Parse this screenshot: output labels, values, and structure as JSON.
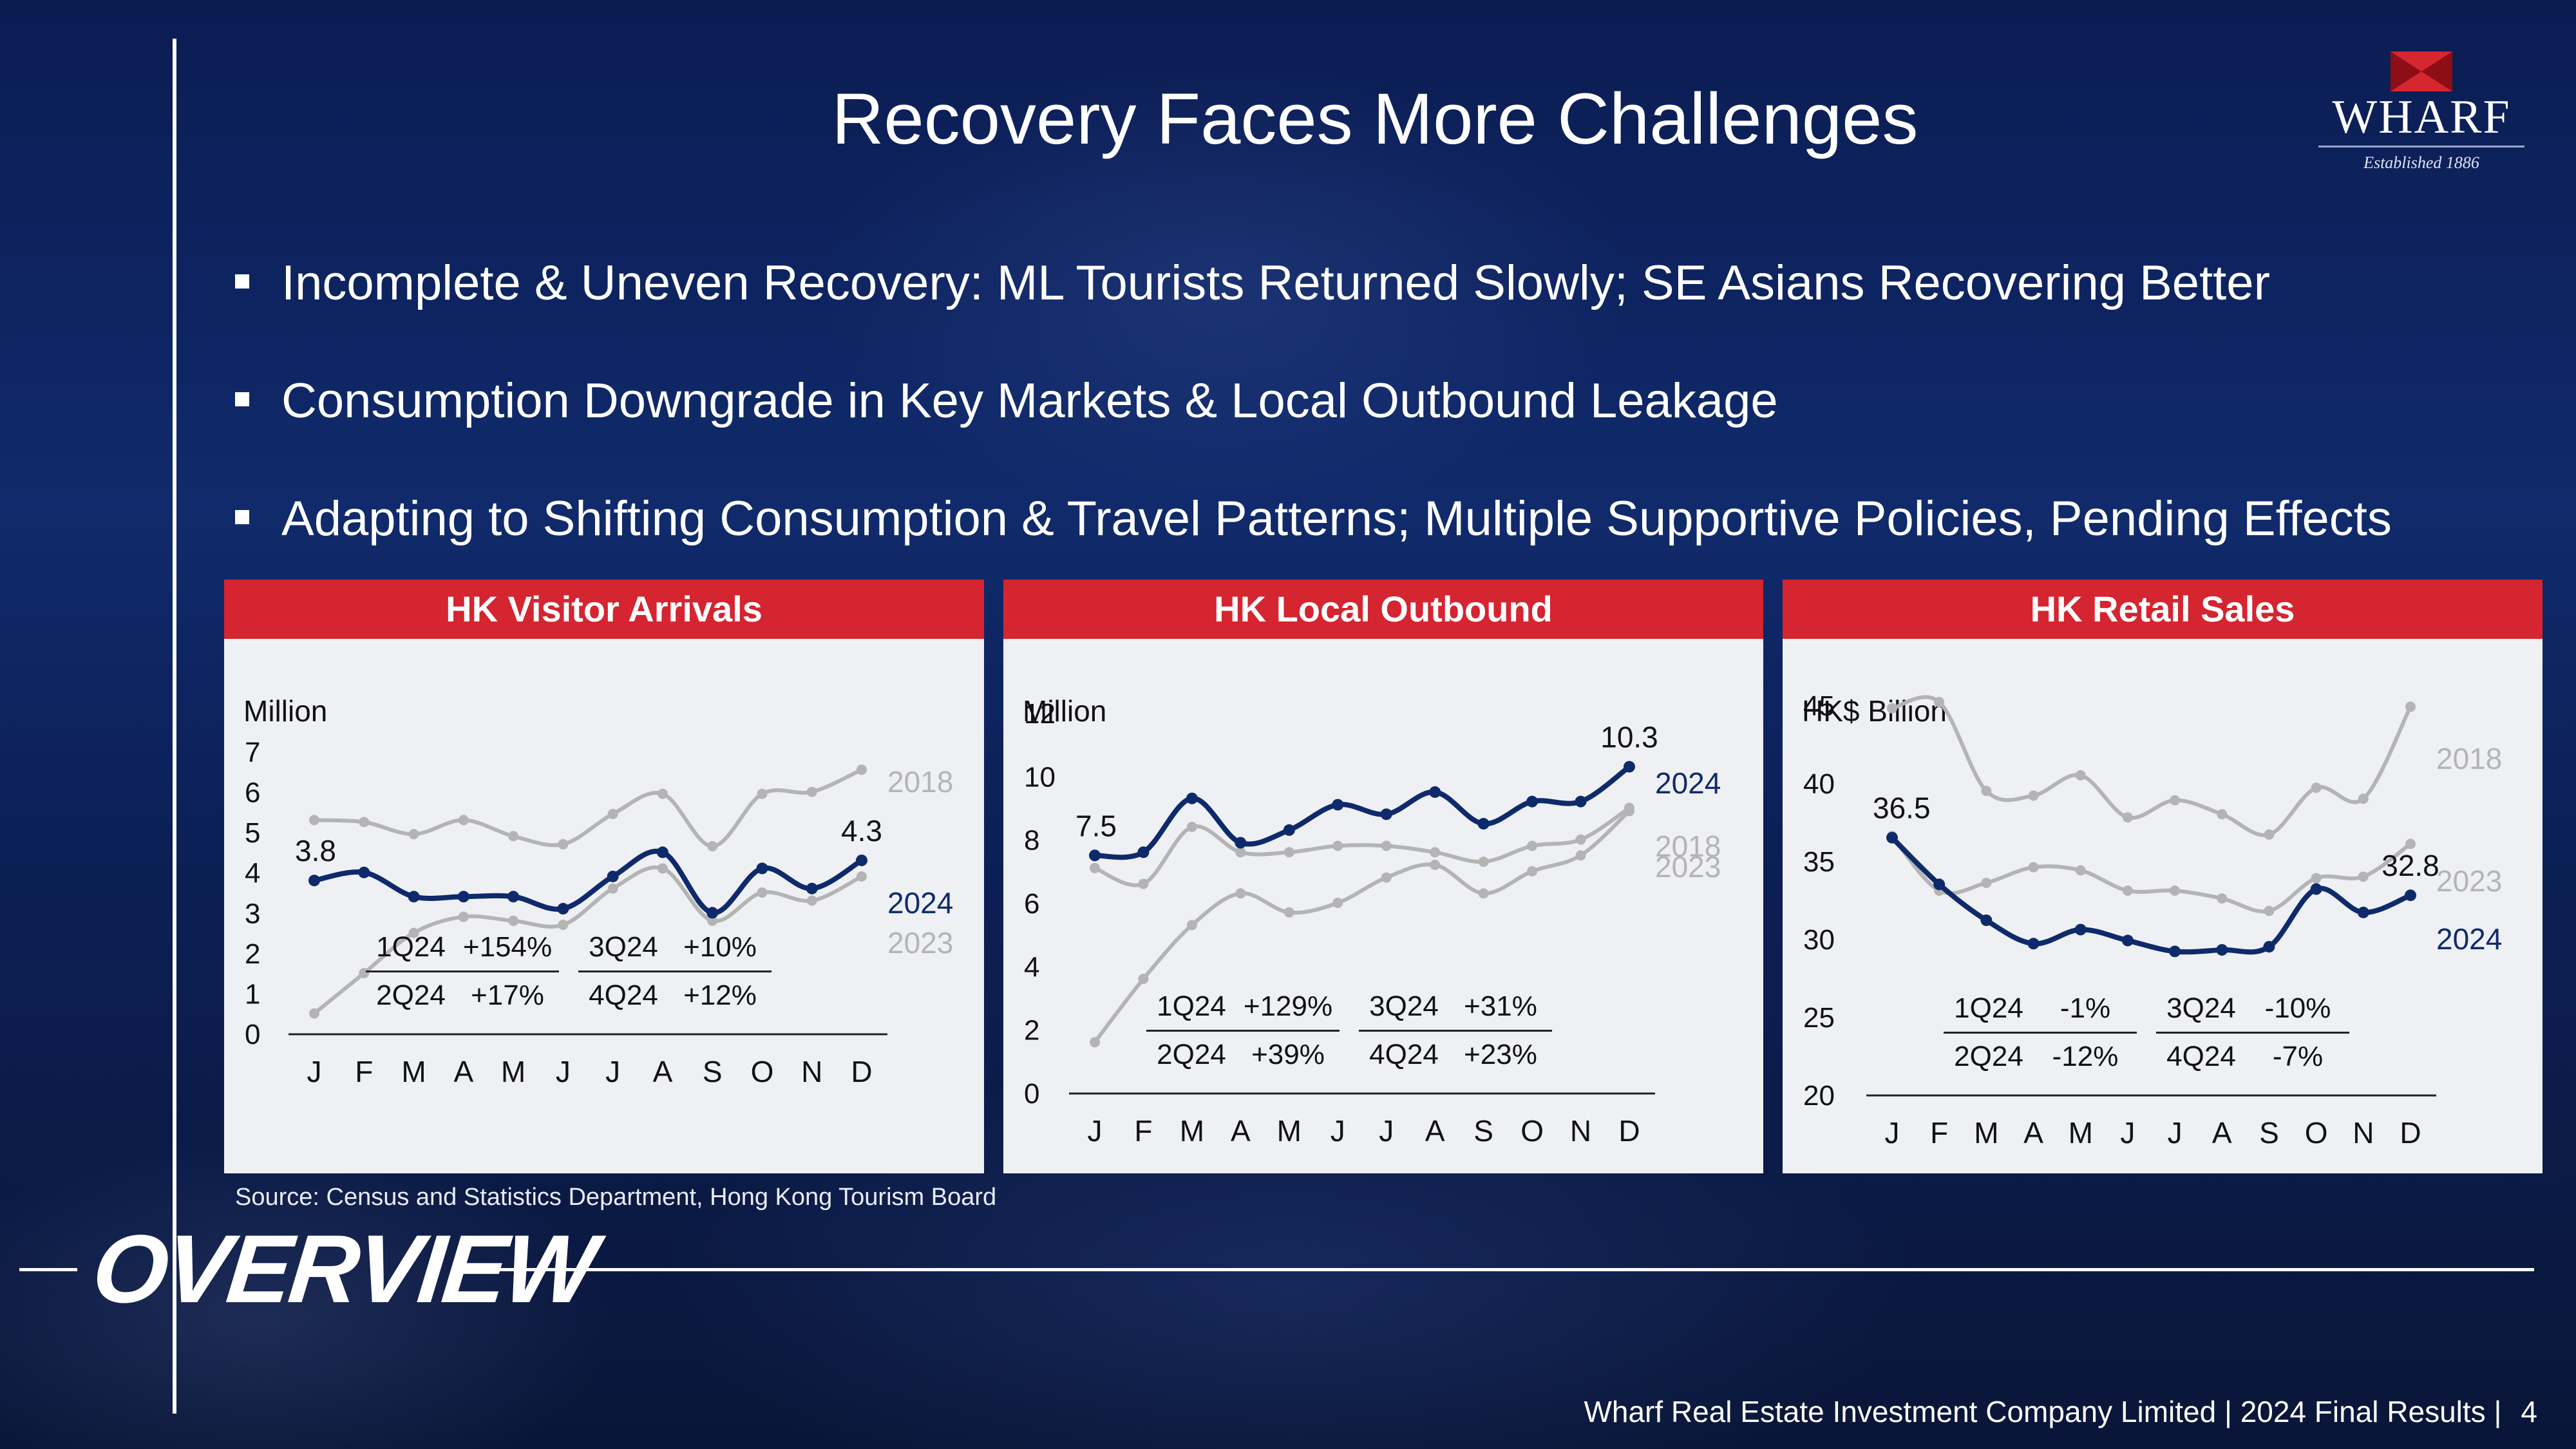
{
  "title": "Recovery Faces More Challenges",
  "logo": {
    "name": "WHARF",
    "tagline": "Established 1886"
  },
  "bullets": [
    "Incomplete & Uneven Recovery: ML Tourists Returned Slowly; SE Asians Recovering Better",
    "Consumption Downgrade in Key Markets & Local Outbound Leakage",
    "Adapting to Shifting Consumption & Travel Patterns; Multiple Supportive Policies, Pending Effects"
  ],
  "source": "Source: Census and Statistics Department, Hong Kong Tourism Board",
  "section_label": "OVERVIEW",
  "footer": {
    "text": "Wharf Real Estate Investment Company Limited | 2024 Final Results |",
    "page": "4"
  },
  "colors": {
    "red": "#d42530",
    "navy": "#0f2a6b",
    "grey": "#b4b4b4"
  },
  "chart_data": [
    {
      "type": "line",
      "title": "HK Visitor Arrivals",
      "ylabel": "Million",
      "ylim": [
        0,
        7
      ],
      "yticks": [
        0,
        1,
        2,
        3,
        4,
        5,
        6,
        7
      ],
      "categories": [
        "J",
        "F",
        "M",
        "A",
        "M",
        "J",
        "J",
        "A",
        "S",
        "O",
        "N",
        "D"
      ],
      "series": [
        {
          "name": "2018",
          "values": [
            5.3,
            5.25,
            4.95,
            5.3,
            4.9,
            4.7,
            5.45,
            5.95,
            4.65,
            5.95,
            6.0,
            6.55
          ]
        },
        {
          "name": "2024",
          "values": [
            3.8,
            4.0,
            3.4,
            3.4,
            3.4,
            3.1,
            3.9,
            4.5,
            3.0,
            4.1,
            3.6,
            4.3
          ]
        },
        {
          "name": "2023",
          "values": [
            0.5,
            1.5,
            2.5,
            2.9,
            2.8,
            2.7,
            3.6,
            4.1,
            2.8,
            3.5,
            3.3,
            3.9
          ]
        }
      ],
      "data_labels": {
        "first": "3.8",
        "last": "4.3"
      },
      "growth_table": [
        {
          "quarter": "1Q24",
          "change": "+154%"
        },
        {
          "quarter": "3Q24",
          "change": "+10%"
        },
        {
          "quarter": "2Q24",
          "change": "+17%"
        },
        {
          "quarter": "4Q24",
          "change": "+12%"
        }
      ]
    },
    {
      "type": "line",
      "title": "HK Local Outbound",
      "ylabel": "Million",
      "ylim": [
        0,
        12
      ],
      "yticks": [
        0,
        2,
        4,
        6,
        8,
        10,
        12
      ],
      "categories": [
        "J",
        "F",
        "M",
        "A",
        "M",
        "J",
        "J",
        "A",
        "S",
        "O",
        "N",
        "D"
      ],
      "series": [
        {
          "name": "2024",
          "values": [
            7.5,
            7.6,
            9.3,
            7.9,
            8.3,
            9.1,
            8.8,
            9.5,
            8.5,
            9.2,
            9.2,
            10.3
          ]
        },
        {
          "name": "2018",
          "values": [
            7.1,
            6.6,
            8.4,
            7.6,
            7.6,
            7.8,
            7.8,
            7.6,
            7.3,
            7.8,
            8.0,
            9.0
          ]
        },
        {
          "name": "2023",
          "values": [
            1.6,
            3.6,
            5.3,
            6.3,
            5.7,
            6.0,
            6.8,
            7.2,
            6.3,
            7.0,
            7.5,
            8.9
          ]
        }
      ],
      "data_labels": {
        "first": "7.5",
        "last": "10.3"
      },
      "growth_table": [
        {
          "quarter": "1Q24",
          "change": "+129%"
        },
        {
          "quarter": "3Q24",
          "change": "+31%"
        },
        {
          "quarter": "2Q24",
          "change": "+39%"
        },
        {
          "quarter": "4Q24",
          "change": "+23%"
        }
      ]
    },
    {
      "type": "line",
      "title": "HK Retail Sales",
      "ylabel": "HK$ Billion",
      "ylim": [
        20,
        45
      ],
      "yticks": [
        20,
        25,
        30,
        35,
        40,
        45
      ],
      "categories": [
        "J",
        "F",
        "M",
        "A",
        "M",
        "J",
        "J",
        "A",
        "S",
        "O",
        "N",
        "D"
      ],
      "series": [
        {
          "name": "2018",
          "values": [
            44.8,
            45.2,
            39.5,
            39.2,
            40.5,
            37.8,
            38.9,
            38.0,
            36.7,
            39.7,
            39.0,
            44.9
          ]
        },
        {
          "name": "2023",
          "values": [
            36.6,
            33.1,
            33.6,
            34.6,
            34.4,
            33.1,
            33.1,
            32.6,
            31.8,
            33.9,
            34.0,
            36.1
          ]
        },
        {
          "name": "2024",
          "values": [
            36.5,
            33.5,
            31.2,
            29.7,
            30.6,
            29.9,
            29.2,
            29.3,
            29.5,
            33.2,
            31.7,
            32.8
          ]
        }
      ],
      "data_labels": {
        "first": "36.5",
        "last": "32.8"
      },
      "growth_table": [
        {
          "quarter": "1Q24",
          "change": "-1%"
        },
        {
          "quarter": "3Q24",
          "change": "-10%"
        },
        {
          "quarter": "2Q24",
          "change": "-12%"
        },
        {
          "quarter": "4Q24",
          "change": "-7%"
        }
      ]
    }
  ]
}
